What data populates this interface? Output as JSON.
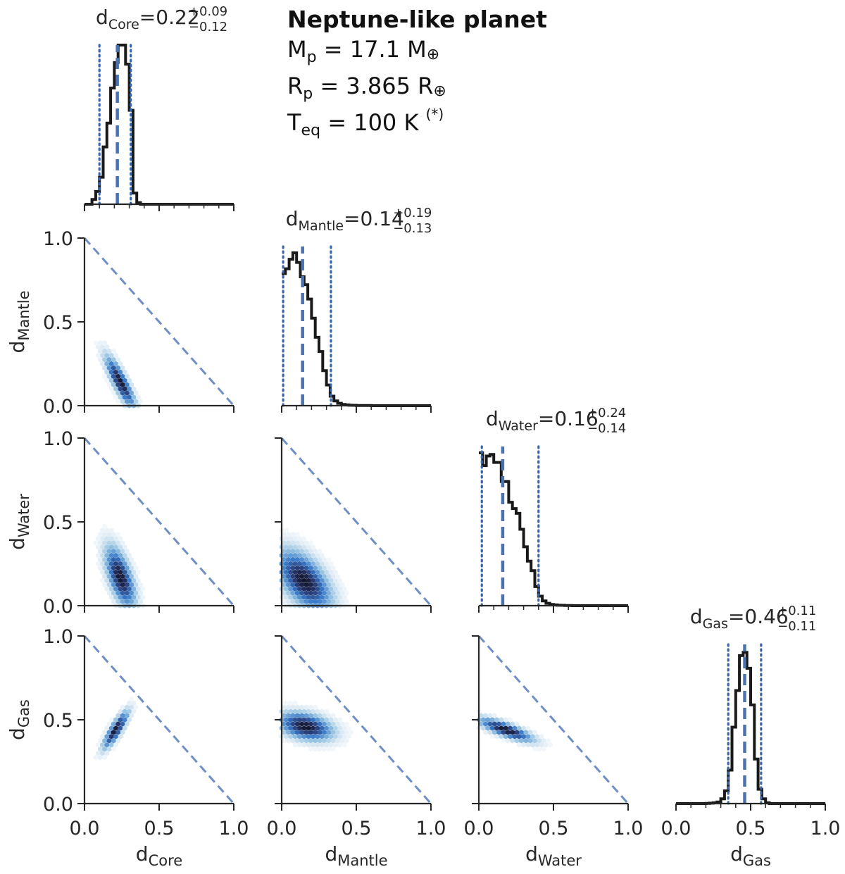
{
  "info": {
    "title": "Neptune-like planet",
    "mass": {
      "sym": "M",
      "sub": "p",
      "value": "17.1",
      "unit": "M",
      "unit_sub": "⊕"
    },
    "radius": {
      "sym": "R",
      "sub": "p",
      "value": "3.865",
      "unit": "R",
      "unit_sub": "⊕"
    },
    "teq": {
      "sym": "T",
      "sub": "eq",
      "value": "100 K",
      "note": "(*)"
    }
  },
  "chart_data": {
    "type": "corner",
    "variables": [
      {
        "key": "Core",
        "label": "d",
        "label_sub": "Core",
        "median": 0.22,
        "plus": "+0.09",
        "minus": "−0.12",
        "median_text": "0.22"
      },
      {
        "key": "Mantle",
        "label": "d",
        "label_sub": "Mantle",
        "median": 0.14,
        "plus": "+0.19",
        "minus": "−0.13",
        "median_text": "0.14"
      },
      {
        "key": "Water",
        "label": "d",
        "label_sub": "Water",
        "median": 0.16,
        "plus": "+0.24",
        "minus": "−0.14",
        "median_text": "0.16"
      },
      {
        "key": "Gas",
        "label": "d",
        "label_sub": "Gas",
        "median": 0.46,
        "plus": "+0.11",
        "minus": "−0.11",
        "median_text": "0.46"
      }
    ],
    "xlim": [
      0,
      1
    ],
    "ylim": [
      0,
      1
    ],
    "ticks": [
      0.0,
      0.5,
      1.0
    ],
    "tick_labels": [
      "0.0",
      "0.5",
      "1.0"
    ],
    "constraint_line": "x + y = 1 (dashed)",
    "histograms": {
      "Core": {
        "bin_width": 0.025,
        "start": 0.0,
        "counts": [
          0,
          0,
          0.03,
          0.08,
          0.17,
          0.36,
          0.51,
          0.73,
          0.89,
          1.0,
          1.0,
          0.88,
          0.59,
          0.07,
          0.01,
          0,
          0,
          0,
          0,
          0,
          0,
          0,
          0,
          0,
          0,
          0,
          0,
          0,
          0,
          0,
          0,
          0,
          0,
          0,
          0,
          0,
          0,
          0,
          0,
          0
        ]
      },
      "Mantle": {
        "bin_width": 0.025,
        "start": 0.0,
        "counts": [
          0.83,
          0.86,
          0.92,
          0.96,
          0.9,
          0.81,
          0.76,
          0.67,
          0.55,
          0.43,
          0.34,
          0.22,
          0.13,
          0.06,
          0.03,
          0.015,
          0.008,
          0.005,
          0.003,
          0.002,
          0.001,
          0.001,
          0.001,
          0.001,
          0,
          0,
          0,
          0,
          0,
          0,
          0,
          0,
          0,
          0,
          0,
          0,
          0,
          0,
          0,
          0
        ]
      },
      "Water": {
        "bin_width": 0.025,
        "start": 0.0,
        "counts": [
          0.96,
          0.88,
          0.94,
          0.95,
          0.9,
          0.9,
          0.78,
          0.78,
          0.65,
          0.61,
          0.58,
          0.48,
          0.37,
          0.28,
          0.22,
          0.12,
          0.06,
          0.03,
          0.015,
          0.008,
          0.005,
          0.003,
          0.002,
          0.001,
          0.001,
          0,
          0,
          0,
          0,
          0,
          0,
          0,
          0,
          0,
          0,
          0,
          0,
          0,
          0,
          0
        ]
      },
      "Gas": {
        "bin_width": 0.025,
        "start": 0.0,
        "counts": [
          0,
          0,
          0,
          0,
          0,
          0,
          0,
          0,
          0.001,
          0.003,
          0.005,
          0.01,
          0.03,
          0.08,
          0.21,
          0.48,
          0.71,
          0.93,
          0.95,
          0.85,
          0.62,
          0.28,
          0.09,
          0.03,
          0.005,
          0,
          0,
          0,
          0,
          0,
          0,
          0,
          0,
          0,
          0,
          0,
          0,
          0,
          0,
          0
        ]
      }
    },
    "quantiles": {
      "Core": [
        0.1,
        0.22,
        0.31
      ],
      "Mantle": [
        0.01,
        0.14,
        0.33
      ],
      "Water": [
        0.02,
        0.16,
        0.4
      ],
      "Gas": [
        0.35,
        0.46,
        0.57
      ]
    },
    "hexbin_2d": [
      {
        "x": "Core",
        "y": "Mantle",
        "center": [
          0.24,
          0.14
        ],
        "spread": [
          0.07,
          0.11
        ],
        "rho": -0.85
      },
      {
        "x": "Core",
        "y": "Water",
        "center": [
          0.24,
          0.17
        ],
        "spread": [
          0.07,
          0.13
        ],
        "rho": -0.6
      },
      {
        "x": "Mantle",
        "y": "Water",
        "center": [
          0.15,
          0.15
        ],
        "spread": [
          0.13,
          0.13
        ],
        "rho": -0.55
      },
      {
        "x": "Core",
        "y": "Gas",
        "center": [
          0.21,
          0.44
        ],
        "spread": [
          0.06,
          0.08
        ],
        "rho": 0.85
      },
      {
        "x": "Mantle",
        "y": "Gas",
        "center": [
          0.16,
          0.46
        ],
        "spread": [
          0.13,
          0.06
        ],
        "rho": -0.35
      },
      {
        "x": "Water",
        "y": "Gas",
        "center": [
          0.18,
          0.44
        ],
        "spread": [
          0.13,
          0.05
        ],
        "rho": -0.8
      }
    ],
    "colors": {
      "median_line": "#4a72b0",
      "quantile_line": "#3a66ad",
      "hist": "#1a1a1a",
      "constraint": "#6f8fc4",
      "axis": "#262626"
    }
  }
}
